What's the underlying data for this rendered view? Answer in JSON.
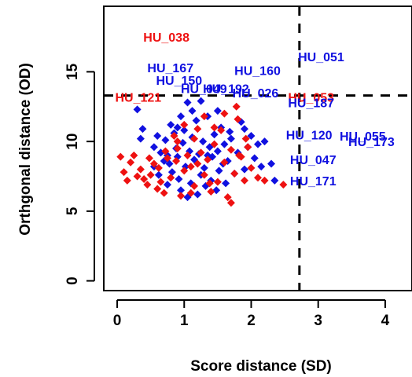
{
  "chart_data": {
    "type": "scatter",
    "xlabel": "Score distance (SD)",
    "ylabel": "Orthgonal distance (OD)",
    "xlim": [
      -0.2,
      4.4
    ],
    "ylim": [
      -0.7,
      19.7
    ],
    "x_ticks": [
      0,
      1,
      2,
      3,
      4
    ],
    "y_ticks": [
      0,
      5,
      10,
      15
    ],
    "grid": false,
    "cutoffs": {
      "sd": 2.72,
      "od": 13.3
    },
    "colors": {
      "blue": "#1010e0",
      "red": "#ee1111"
    },
    "series": [
      {
        "color_key": "blue",
        "points": [
          [
            0.3,
            12.3
          ],
          [
            0.38,
            10.9
          ],
          [
            0.35,
            10.2
          ],
          [
            0.55,
            9.6
          ],
          [
            0.6,
            10.4
          ],
          [
            0.65,
            9.2
          ],
          [
            0.7,
            8.6
          ],
          [
            0.72,
            10.1
          ],
          [
            0.75,
            9.0
          ],
          [
            0.78,
            8.4
          ],
          [
            0.8,
            11.2
          ],
          [
            0.82,
            7.8
          ],
          [
            0.85,
            10.6
          ],
          [
            0.88,
            9.5
          ],
          [
            0.9,
            8.9
          ],
          [
            0.92,
            7.3
          ],
          [
            0.95,
            6.5
          ],
          [
            0.98,
            9.9
          ],
          [
            1.0,
            10.8
          ],
          [
            1.02,
            8.2
          ],
          [
            1.05,
            6.0
          ],
          [
            1.08,
            9.3
          ],
          [
            1.1,
            7.0
          ],
          [
            1.12,
            10.3
          ],
          [
            1.15,
            8.7
          ],
          [
            1.18,
            11.5
          ],
          [
            1.2,
            6.2
          ],
          [
            1.22,
            9.1
          ],
          [
            1.25,
            7.6
          ],
          [
            1.28,
            10.0
          ],
          [
            1.3,
            8.1
          ],
          [
            1.32,
            6.8
          ],
          [
            1.35,
            11.8
          ],
          [
            1.38,
            9.6
          ],
          [
            1.4,
            7.2
          ],
          [
            1.42,
            8.9
          ],
          [
            1.45,
            10.5
          ],
          [
            1.48,
            6.5
          ],
          [
            1.5,
            9.3
          ],
          [
            1.52,
            7.9
          ],
          [
            1.55,
            11.0
          ],
          [
            1.58,
            8.4
          ],
          [
            1.6,
            9.8
          ],
          [
            1.62,
            7.0
          ],
          [
            1.65,
            8.6
          ],
          [
            1.7,
            10.2
          ],
          [
            1.75,
            7.7
          ],
          [
            1.8,
            9.2
          ],
          [
            1.85,
            11.4
          ],
          [
            1.9,
            8.0
          ],
          [
            1.95,
            9.6
          ],
          [
            2.0,
            10.4
          ],
          [
            2.05,
            8.8
          ],
          [
            2.1,
            9.8
          ],
          [
            2.15,
            8.2
          ],
          [
            2.2,
            10.0
          ],
          [
            2.3,
            8.4
          ],
          [
            2.35,
            7.2
          ],
          [
            1.05,
            12.8
          ],
          [
            0.95,
            11.8
          ],
          [
            1.25,
            12.9
          ],
          [
            0.9,
            11.0
          ],
          [
            1.12,
            12.2
          ],
          [
            0.75,
            6.9
          ],
          [
            0.62,
            7.6
          ],
          [
            1.5,
            12.2
          ],
          [
            1.68,
            10.7
          ],
          [
            1.35,
            9.0
          ],
          [
            0.55,
            8.2
          ],
          [
            1.9,
            10.9
          ]
        ]
      },
      {
        "color_key": "red",
        "points": [
          [
            0.05,
            8.9
          ],
          [
            0.1,
            7.8
          ],
          [
            0.15,
            7.2
          ],
          [
            0.2,
            8.5
          ],
          [
            0.25,
            9.0
          ],
          [
            0.3,
            7.5
          ],
          [
            0.35,
            8.0
          ],
          [
            0.4,
            7.3
          ],
          [
            0.45,
            6.9
          ],
          [
            0.5,
            7.6
          ],
          [
            0.55,
            8.4
          ],
          [
            0.6,
            6.6
          ],
          [
            0.65,
            7.1
          ],
          [
            0.7,
            6.3
          ],
          [
            0.75,
            8.8
          ],
          [
            0.8,
            7.4
          ],
          [
            0.85,
            10.4
          ],
          [
            0.9,
            9.5
          ],
          [
            0.95,
            6.1
          ],
          [
            1.0,
            7.9
          ],
          [
            1.05,
            9.0
          ],
          [
            1.1,
            8.2
          ],
          [
            1.15,
            6.8
          ],
          [
            1.2,
            10.9
          ],
          [
            1.25,
            9.2
          ],
          [
            1.3,
            7.6
          ],
          [
            1.35,
            8.7
          ],
          [
            1.4,
            6.4
          ],
          [
            1.45,
            9.8
          ],
          [
            1.5,
            7.1
          ],
          [
            1.55,
            10.8
          ],
          [
            1.6,
            8.5
          ],
          [
            1.65,
            6.0
          ],
          [
            1.7,
            9.4
          ],
          [
            1.75,
            7.7
          ],
          [
            1.8,
            11.6
          ],
          [
            1.85,
            8.9
          ],
          [
            1.9,
            7.2
          ],
          [
            1.95,
            9.6
          ],
          [
            2.0,
            8.1
          ],
          [
            2.1,
            7.4
          ],
          [
            2.2,
            7.2
          ],
          [
            2.48,
            6.9
          ],
          [
            1.0,
            11.2
          ],
          [
            0.9,
            10.0
          ],
          [
            1.3,
            11.8
          ],
          [
            1.7,
            5.6
          ],
          [
            0.62,
            8.1
          ],
          [
            1.1,
            6.3
          ],
          [
            1.6,
            12.0
          ],
          [
            1.78,
            12.5
          ],
          [
            1.2,
            8.4
          ],
          [
            0.72,
            9.3
          ],
          [
            1.45,
            11.0
          ],
          [
            1.82,
            9.0
          ],
          [
            0.88,
            8.6
          ],
          [
            1.15,
            10.2
          ],
          [
            1.92,
            10.2
          ],
          [
            1.38,
            7.0
          ],
          [
            0.48,
            8.8
          ]
        ]
      }
    ],
    "labels": [
      {
        "text": "HU_038",
        "x": 0.39,
        "y": 17.5,
        "color_key": "red"
      },
      {
        "text": "HU_051",
        "x": 2.7,
        "y": 16.1,
        "color_key": "blue"
      },
      {
        "text": "HU_167",
        "x": 0.45,
        "y": 15.3,
        "color_key": "blue"
      },
      {
        "text": "HU_160",
        "x": 1.75,
        "y": 15.1,
        "color_key": "blue"
      },
      {
        "text": "HU_150",
        "x": 0.58,
        "y": 14.4,
        "color_key": "blue"
      },
      {
        "text": "HU_049",
        "x": 0.95,
        "y": 13.8,
        "color_key": "blue"
      },
      {
        "text": "HU_192",
        "x": 1.28,
        "y": 13.8,
        "color_key": "blue"
      },
      {
        "text": "HU_026",
        "x": 1.72,
        "y": 13.5,
        "color_key": "blue"
      },
      {
        "text": "HU_121",
        "x": -0.03,
        "y": 13.2,
        "color_key": "red"
      },
      {
        "text": "HU_053",
        "x": 2.55,
        "y": 13.2,
        "color_key": "red"
      },
      {
        "text": "HU_187",
        "x": 2.55,
        "y": 12.8,
        "color_key": "blue"
      },
      {
        "text": "HU_120",
        "x": 2.52,
        "y": 10.5,
        "color_key": "blue"
      },
      {
        "text": "HU_055",
        "x": 3.32,
        "y": 10.4,
        "color_key": "blue"
      },
      {
        "text": "HU_173",
        "x": 3.45,
        "y": 10.0,
        "color_key": "blue"
      },
      {
        "text": "HU_047",
        "x": 2.58,
        "y": 8.7,
        "color_key": "blue"
      },
      {
        "text": "HU_171",
        "x": 2.58,
        "y": 7.2,
        "color_key": "blue"
      }
    ]
  }
}
